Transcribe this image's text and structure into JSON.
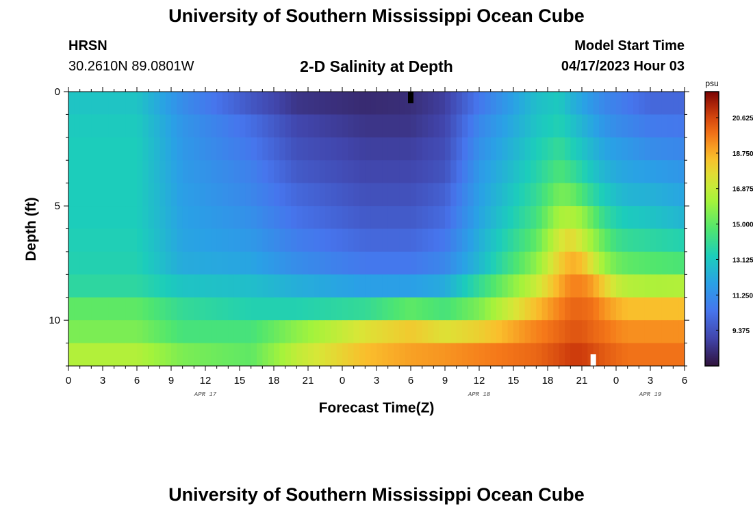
{
  "header": {
    "title": "University of Southern Mississippi Ocean Cube",
    "station": "HRSN",
    "coords": "30.2610N  89.0801W",
    "subtitle": "2-D Salinity at Depth",
    "start_label": "Model Start Time",
    "start_value": "04/17/2023 Hour 03"
  },
  "footer": {
    "title": "University of Southern Mississippi Ocean Cube"
  },
  "chart_data": {
    "type": "heatmap",
    "title": "2-D Salinity at Depth",
    "xlabel": "Forecast Time(Z)",
    "ylabel": "Depth (ft)",
    "x_hours_range": [
      0,
      54
    ],
    "ylim": [
      0,
      12
    ],
    "y_ticks": [
      0,
      5,
      10
    ],
    "x_tick_labels": [
      "0",
      "3",
      "6",
      "9",
      "12",
      "15",
      "18",
      "21",
      "0",
      "3",
      "6",
      "9",
      "12",
      "15",
      "18",
      "21",
      "0",
      "3",
      "6"
    ],
    "date_labels": [
      {
        "text": "APR 17",
        "hour": 12
      },
      {
        "text": "APR 18",
        "hour": 36
      },
      {
        "text": "APR 19",
        "hour": 51
      }
    ],
    "colorbar": {
      "unit": "psu",
      "range": [
        7.5,
        22.0
      ],
      "ticks": [
        "20.625",
        "18.750",
        "16.875",
        "15.000",
        "13.125",
        "11.250",
        "9.375"
      ],
      "tick_values": [
        20.625,
        18.75,
        16.875,
        15.0,
        13.125,
        11.25,
        9.375
      ]
    },
    "markers": [
      {
        "hour": 30,
        "depth": 0,
        "color": "#000000"
      },
      {
        "hour": 46,
        "depth": 12,
        "color": "#ffffff"
      }
    ],
    "grid_hours": [
      0,
      6,
      10,
      16,
      20,
      26,
      30,
      33,
      36,
      41,
      43,
      44,
      45,
      46,
      47,
      48,
      49,
      51,
      54
    ],
    "grid_depths": [
      0.5,
      1.5,
      2.5,
      3.5,
      4.5,
      5.5,
      6.5,
      7.5,
      8.5,
      9.5,
      10.5,
      11.5
    ],
    "salinity": [
      [
        13.0,
        13.0,
        11.2,
        9.5,
        8.5,
        8.2,
        8.3,
        8.8,
        10.5,
        12.8,
        13.2,
        12.5,
        12.0,
        11.5,
        11.0,
        10.8,
        10.5,
        10.0,
        10.0
      ],
      [
        13.2,
        13.2,
        11.5,
        10.2,
        9.0,
        8.5,
        8.5,
        9.0,
        11.0,
        13.0,
        13.5,
        13.0,
        12.5,
        12.0,
        11.5,
        11.2,
        11.0,
        10.6,
        10.5
      ],
      [
        13.3,
        13.3,
        11.6,
        10.5,
        9.3,
        8.8,
        8.8,
        9.2,
        11.3,
        13.3,
        14.0,
        13.5,
        13.0,
        12.5,
        12.0,
        11.8,
        11.6,
        11.2,
        11.0
      ],
      [
        13.3,
        13.3,
        11.7,
        10.8,
        9.6,
        9.0,
        9.0,
        9.4,
        11.6,
        13.6,
        14.6,
        14.2,
        13.6,
        13.0,
        12.5,
        12.2,
        12.0,
        11.8,
        11.5
      ],
      [
        13.3,
        13.3,
        11.8,
        11.0,
        10.0,
        9.3,
        9.3,
        9.8,
        11.8,
        14.0,
        15.4,
        15.3,
        14.6,
        13.8,
        13.2,
        12.8,
        12.5,
        12.4,
        12.0
      ],
      [
        13.3,
        13.3,
        11.9,
        11.3,
        10.3,
        9.6,
        9.6,
        10.1,
        12.0,
        14.4,
        16.3,
        16.5,
        16.0,
        15.0,
        14.0,
        13.5,
        13.2,
        13.0,
        12.5
      ],
      [
        13.4,
        13.4,
        12.0,
        11.6,
        10.7,
        10.0,
        10.0,
        10.5,
        12.3,
        15.0,
        17.2,
        17.8,
        17.0,
        16.0,
        15.0,
        14.3,
        14.0,
        13.8,
        13.5
      ],
      [
        13.5,
        13.5,
        12.2,
        12.0,
        11.2,
        10.5,
        10.5,
        11.0,
        12.6,
        15.8,
        18.0,
        18.8,
        18.5,
        17.2,
        16.0,
        15.3,
        15.0,
        14.8,
        14.6
      ],
      [
        13.8,
        13.8,
        13.0,
        12.8,
        12.3,
        11.8,
        11.8,
        12.2,
        14.0,
        17.0,
        18.8,
        19.5,
        19.5,
        19.0,
        18.0,
        17.0,
        16.6,
        16.4,
        16.5
      ],
      [
        15.0,
        15.0,
        14.0,
        13.5,
        13.5,
        14.0,
        15.0,
        14.5,
        15.5,
        18.5,
        19.5,
        20.0,
        20.0,
        19.8,
        19.2,
        18.8,
        18.5,
        18.5,
        18.5
      ],
      [
        15.5,
        15.5,
        14.5,
        14.5,
        15.8,
        17.5,
        18.2,
        17.5,
        18.0,
        19.5,
        20.0,
        20.3,
        20.3,
        20.0,
        19.8,
        19.5,
        19.3,
        19.3,
        19.3
      ],
      [
        16.5,
        16.5,
        15.5,
        15.0,
        16.8,
        18.5,
        19.0,
        19.2,
        19.5,
        20.0,
        20.5,
        20.8,
        20.8,
        20.5,
        20.2,
        20.0,
        19.8,
        19.8,
        19.8
      ]
    ]
  }
}
